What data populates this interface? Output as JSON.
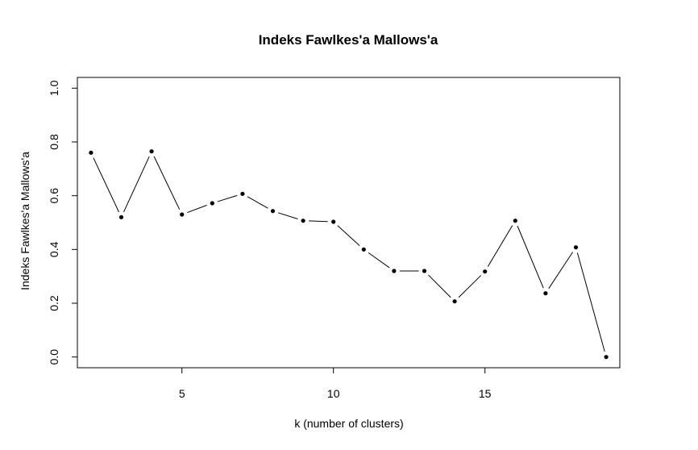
{
  "chart_data": {
    "type": "line",
    "title": "Indeks Fawlkes'a Mallows'a",
    "xlabel": "k (number of clusters)",
    "ylabel": "Indeks Fawlkes'a Mallows'a",
    "x": [
      2,
      3,
      4,
      5,
      6,
      7,
      8,
      9,
      10,
      11,
      12,
      13,
      14,
      15,
      16,
      17,
      18,
      19
    ],
    "series": [
      {
        "values": [
          0.76,
          0.52,
          0.765,
          0.53,
          0.572,
          0.607,
          0.543,
          0.507,
          0.503,
          0.4,
          0.32,
          0.32,
          0.207,
          0.318,
          0.507,
          0.237,
          0.408,
          0.0
        ]
      }
    ],
    "xlim": [
      1.55,
      19.45
    ],
    "ylim": [
      -0.04,
      1.04
    ],
    "xticks": [
      "5",
      "10",
      "15"
    ],
    "xtick_values": [
      5,
      10,
      15
    ],
    "yticks": [
      "0.0",
      "0.2",
      "0.4",
      "0.6",
      "0.8",
      "1.0"
    ],
    "ytick_values": [
      0,
      0.2,
      0.4,
      0.6,
      0.8,
      1.0
    ],
    "grid": false,
    "line_color": "#000000",
    "point_color": "#000000"
  }
}
